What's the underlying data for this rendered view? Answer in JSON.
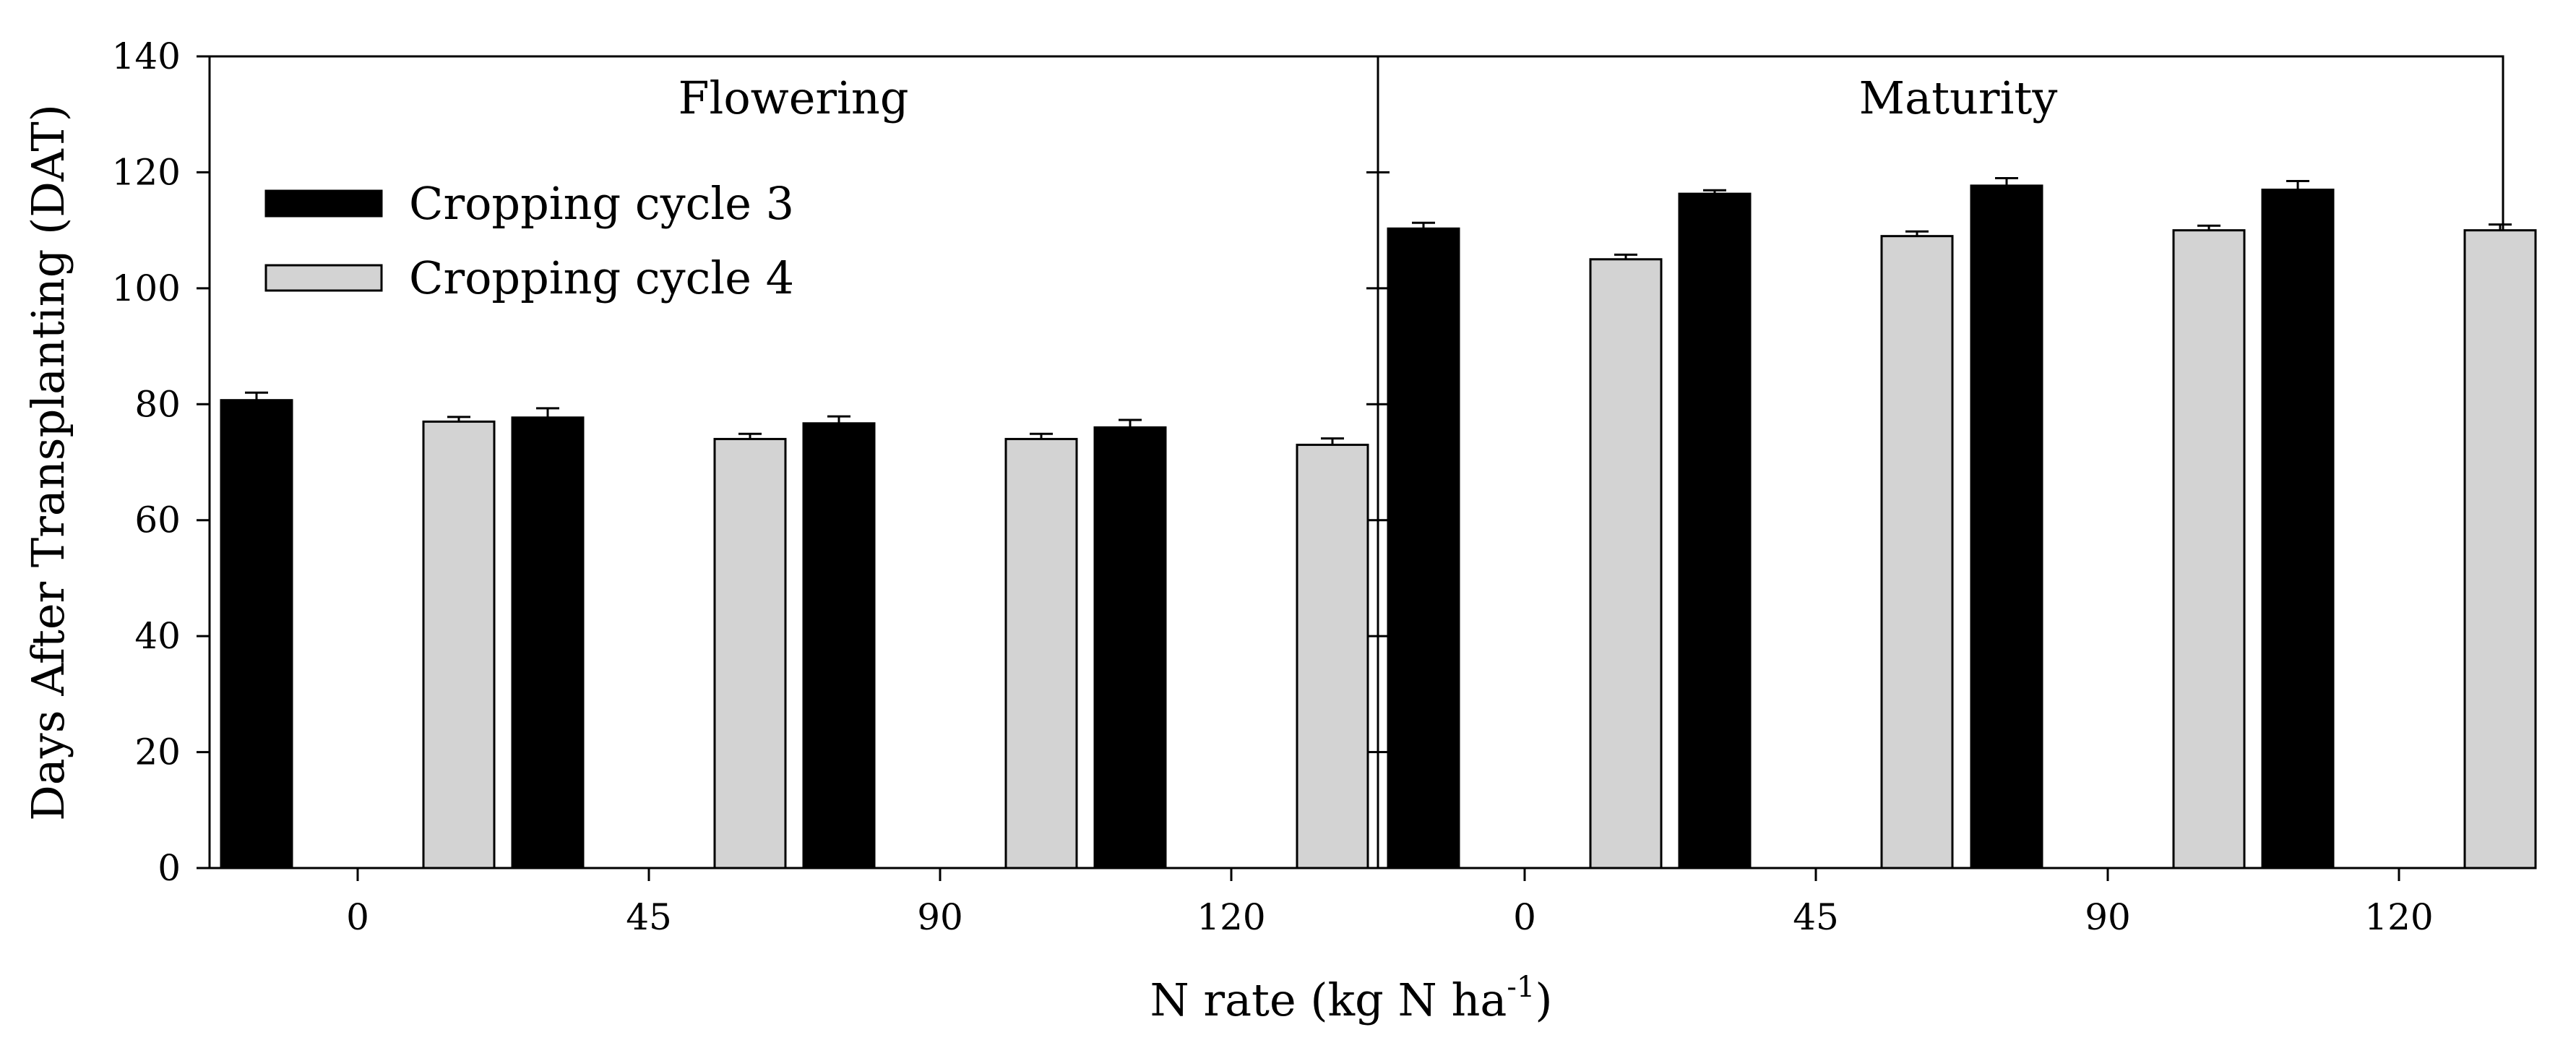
{
  "chart_data": {
    "type": "bar",
    "panels": [
      {
        "title": "Flowering",
        "categories": [
          "0",
          "45",
          "90",
          "120"
        ],
        "series": [
          {
            "name": "Cropping cycle 3",
            "values": [
              80.7,
              77.7,
              76.7,
              76.0
            ],
            "errors": [
              1.3,
              1.6,
              1.2,
              1.3
            ]
          },
          {
            "name": "Cropping cycle 4",
            "values": [
              77.0,
              74.0,
              74.0,
              73.0
            ],
            "errors": [
              0.8,
              0.9,
              0.9,
              1.1
            ]
          }
        ]
      },
      {
        "title": "Maturity",
        "categories": [
          "0",
          "45",
          "90",
          "120"
        ],
        "series": [
          {
            "name": "Cropping cycle 3",
            "values": [
              110.3,
              116.3,
              117.7,
              117.0
            ],
            "errors": [
              1.0,
              0.6,
              1.3,
              1.5
            ]
          },
          {
            "name": "Cropping cycle 4",
            "values": [
              105.0,
              109.0,
              110.0,
              110.0
            ],
            "errors": [
              0.8,
              0.8,
              0.8,
              1.0
            ]
          }
        ]
      }
    ],
    "series_colors": {
      "Cropping cycle 3": "#000000",
      "Cropping cycle 4": "#d3d3d3"
    },
    "legend": {
      "placement": "top-left",
      "entries": [
        "Cropping cycle 3",
        "Cropping cycle 4"
      ]
    },
    "ylabel": "Days After Transplanting (DAT)",
    "xlabel_main": "N rate (kg N ha",
    "xlabel_sup": "-1",
    "xlabel_close": ")",
    "ylim": [
      0,
      140
    ],
    "yticks": [
      0,
      20,
      40,
      60,
      80,
      100,
      120,
      140
    ],
    "grid": false
  }
}
